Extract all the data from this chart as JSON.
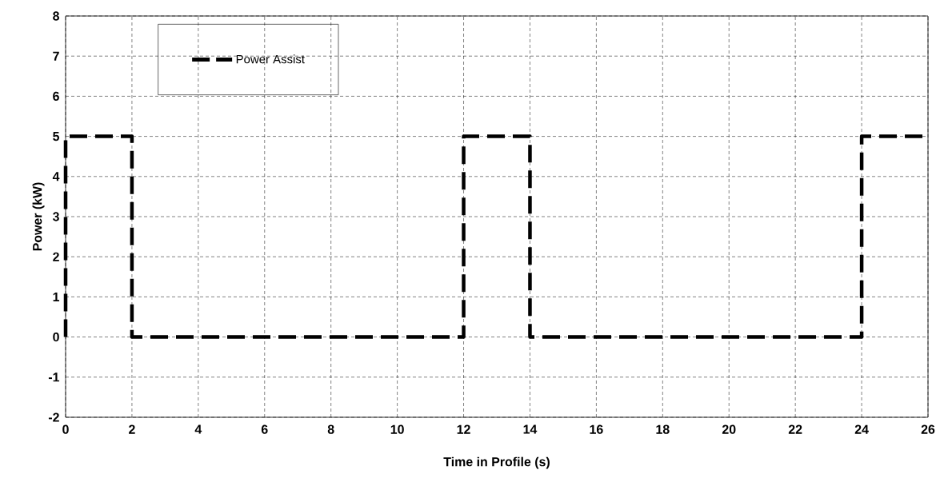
{
  "chart_data": {
    "type": "line",
    "xlabel": "Time in Profile (s)",
    "ylabel": "Power (kW)",
    "x": [
      0,
      0,
      2,
      2,
      12,
      12,
      14,
      14,
      24,
      24,
      26
    ],
    "series": [
      {
        "name": "Power Assist",
        "color": "#000000",
        "values": [
          0,
          5,
          5,
          0,
          0,
          5,
          5,
          0,
          0,
          5,
          5
        ]
      }
    ],
    "xlim": [
      0,
      26
    ],
    "xticks": [
      0,
      2,
      4,
      6,
      8,
      10,
      12,
      14,
      16,
      18,
      20,
      22,
      24,
      26
    ],
    "ylim": [
      -2,
      8
    ],
    "yticks": [
      -2,
      -1,
      0,
      1,
      2,
      3,
      4,
      5,
      6,
      7,
      8
    ],
    "grid": true,
    "legend": "top left",
    "line_style": "dashed",
    "marker": "none"
  }
}
